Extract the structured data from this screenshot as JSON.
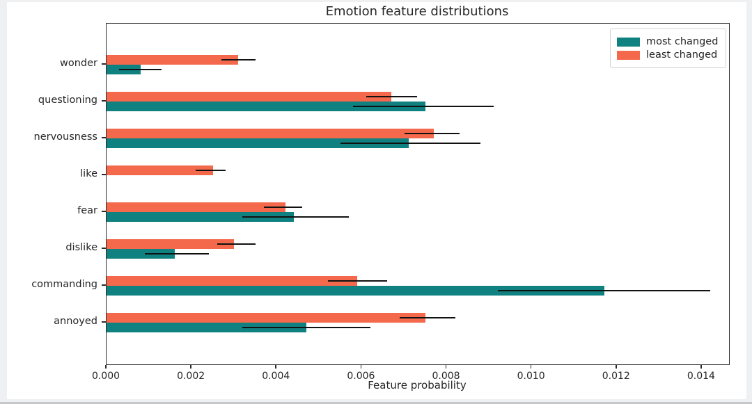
{
  "colors": {
    "most_changed": "#0f8180",
    "least_changed": "#f4694c",
    "error_bar": "#111111",
    "spine": "#2b2b2b",
    "text": "#262626"
  },
  "chart_data": {
    "type": "bar",
    "orientation": "horizontal",
    "title": "Emotion feature distributions",
    "xlabel": "Feature probability",
    "ylabel": "",
    "grid": false,
    "categories": [
      "wonder",
      "questioning",
      "nervousness",
      "like",
      "fear",
      "dislike",
      "commanding",
      "annoyed"
    ],
    "series": [
      {
        "name": "most changed",
        "color": "#0f8180",
        "values": [
          0.0008,
          0.0075,
          0.0071,
          0.0,
          0.0044,
          0.0016,
          0.0117,
          0.0047
        ],
        "error_low": [
          0.0003,
          0.0058,
          0.0055,
          null,
          0.0032,
          0.0009,
          0.0092,
          0.0032
        ],
        "error_high": [
          0.0013,
          0.0091,
          0.0088,
          null,
          0.0057,
          0.0024,
          0.0142,
          0.0062
        ]
      },
      {
        "name": "least changed",
        "color": "#f4694c",
        "values": [
          0.0031,
          0.0067,
          0.0077,
          0.0025,
          0.0042,
          0.003,
          0.0059,
          0.0075
        ],
        "error_low": [
          0.0027,
          0.0061,
          0.007,
          0.0021,
          0.0037,
          0.0026,
          0.0052,
          0.0069
        ],
        "error_high": [
          0.0035,
          0.0073,
          0.0083,
          0.0028,
          0.0046,
          0.0035,
          0.0066,
          0.0082
        ]
      }
    ],
    "x_ticks": [
      {
        "value": 0.0,
        "label": "0.000"
      },
      {
        "value": 0.002,
        "label": "0.002"
      },
      {
        "value": 0.004,
        "label": "0.004"
      },
      {
        "value": 0.006,
        "label": "0.006"
      },
      {
        "value": 0.008,
        "label": "0.008"
      },
      {
        "value": 0.01,
        "label": "0.010"
      },
      {
        "value": 0.012,
        "label": "0.012"
      },
      {
        "value": 0.014,
        "label": "0.014"
      },
      {
        "value": 0.0
      }
    ],
    "xlim": [
      0,
      0.01464
    ],
    "legend": {
      "position": "upper right",
      "entries": [
        {
          "label": "most changed",
          "color": "#0f8180"
        },
        {
          "label": "least changed",
          "color": "#f4694c"
        }
      ]
    }
  }
}
